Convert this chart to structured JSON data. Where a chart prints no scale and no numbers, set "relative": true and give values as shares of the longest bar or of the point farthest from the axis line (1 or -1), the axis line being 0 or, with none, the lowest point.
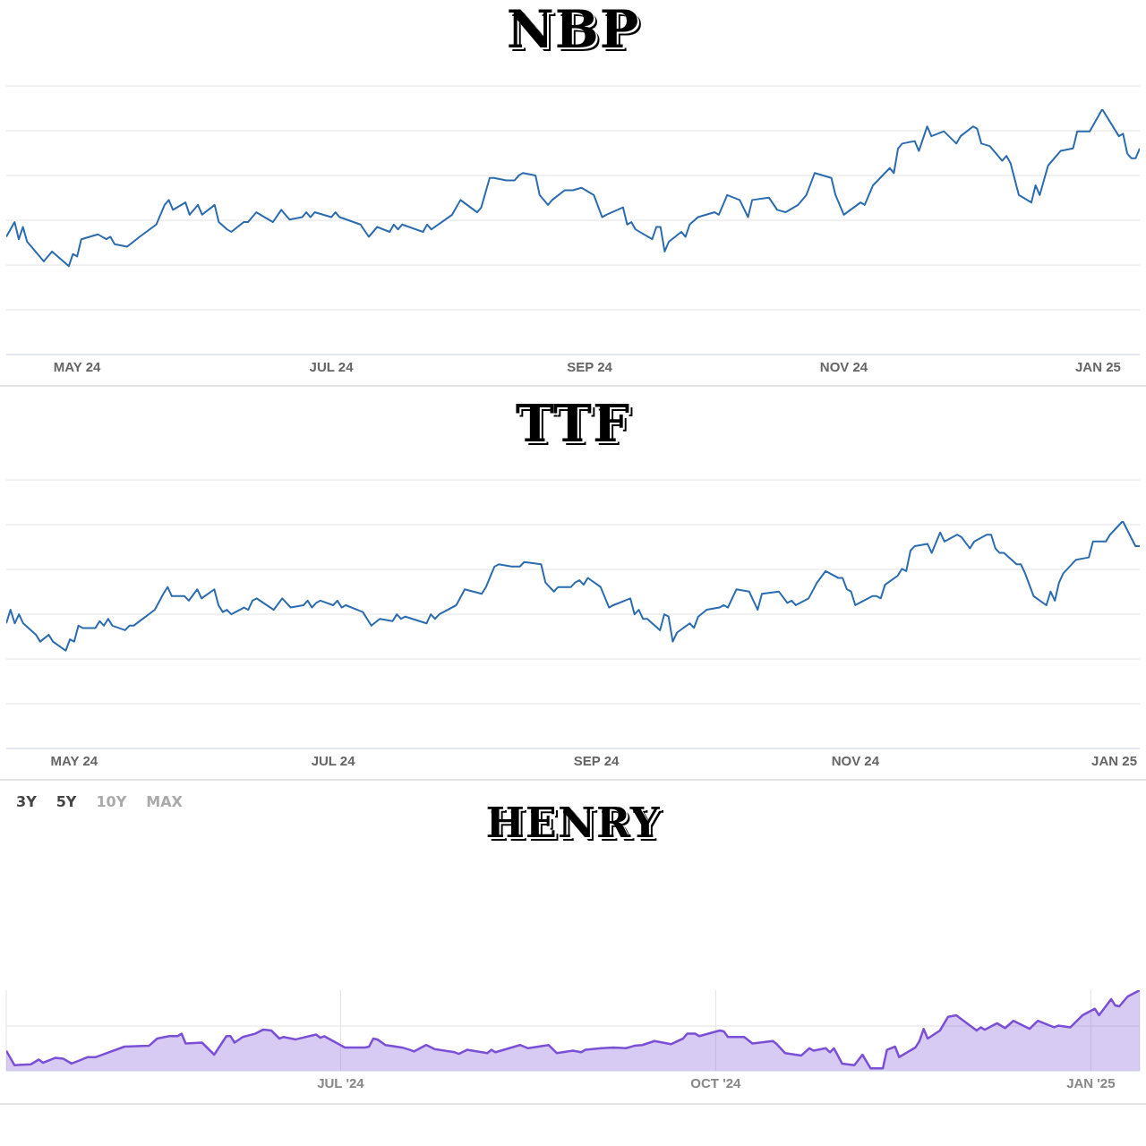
{
  "chart_data": [
    {
      "type": "line",
      "title": "NBP",
      "relative": true,
      "grid": "y",
      "marker": "none",
      "line_style": "solid",
      "xlim": [
        "2024-04-14",
        "2025-01-11"
      ],
      "xticks": [
        {
          "value": "2024-05-01",
          "label": "MAY 24"
        },
        {
          "value": "2024-07-01",
          "label": "JUL 24"
        },
        {
          "value": "2024-09-01",
          "label": "SEP 24"
        },
        {
          "value": "2024-11-01",
          "label": "NOV 24"
        },
        {
          "value": "2025-01-01",
          "label": "JAN 25"
        }
      ],
      "series": [
        {
          "color": "#2b6cb0",
          "x": [
            "2024-04-14",
            "2024-04-16",
            "2024-04-17",
            "2024-04-18",
            "2024-04-19",
            "2024-04-23",
            "2024-04-25",
            "2024-04-29",
            "2024-04-30",
            "2024-05-01",
            "2024-05-02",
            "2024-05-06",
            "2024-05-08",
            "2024-05-09",
            "2024-05-10",
            "2024-05-13",
            "2024-05-16",
            "2024-05-20",
            "2024-05-22",
            "2024-05-23",
            "2024-05-24",
            "2024-05-27",
            "2024-05-28",
            "2024-05-30",
            "2024-05-31",
            "2024-06-03",
            "2024-06-04",
            "2024-06-06",
            "2024-06-07",
            "2024-06-10",
            "2024-06-11",
            "2024-06-13",
            "2024-06-17",
            "2024-06-19",
            "2024-06-21",
            "2024-06-24",
            "2024-06-25",
            "2024-06-26",
            "2024-06-27",
            "2024-07-01",
            "2024-07-02",
            "2024-07-03",
            "2024-07-08",
            "2024-07-10",
            "2024-07-12",
            "2024-07-15",
            "2024-07-16",
            "2024-07-17",
            "2024-07-18",
            "2024-07-23",
            "2024-07-24",
            "2024-07-25",
            "2024-07-30",
            "2024-08-01",
            "2024-08-05",
            "2024-08-06",
            "2024-08-08",
            "2024-08-09",
            "2024-08-12",
            "2024-08-14",
            "2024-08-15",
            "2024-08-16",
            "2024-08-19",
            "2024-08-20",
            "2024-08-22",
            "2024-08-23",
            "2024-08-26",
            "2024-08-28",
            "2024-08-30",
            "2024-09-02",
            "2024-09-04",
            "2024-09-05",
            "2024-09-09",
            "2024-09-10",
            "2024-09-11",
            "2024-09-12",
            "2024-09-16",
            "2024-09-17",
            "2024-09-18",
            "2024-09-19",
            "2024-09-20",
            "2024-09-23",
            "2024-09-24",
            "2024-09-25",
            "2024-09-27",
            "2024-10-01",
            "2024-10-02",
            "2024-10-04",
            "2024-10-07",
            "2024-10-09",
            "2024-10-10",
            "2024-10-14",
            "2024-10-16",
            "2024-10-18",
            "2024-10-21",
            "2024-10-23",
            "2024-10-25",
            "2024-10-29",
            "2024-10-30",
            "2024-11-01",
            "2024-11-05",
            "2024-11-06",
            "2024-11-08",
            "2024-11-12",
            "2024-11-13",
            "2024-11-14",
            "2024-11-15",
            "2024-11-18",
            "2024-11-19",
            "2024-11-21",
            "2024-11-22",
            "2024-11-25",
            "2024-11-28",
            "2024-11-29",
            "2024-12-02",
            "2024-12-03",
            "2024-12-04",
            "2024-12-06",
            "2024-12-09",
            "2024-12-10",
            "2024-12-11",
            "2024-12-13",
            "2024-12-16",
            "2024-12-17",
            "2024-12-18",
            "2024-12-20",
            "2024-12-23",
            "2024-12-26",
            "2024-12-27",
            "2024-12-30",
            "2024-12-31",
            "2025-01-02",
            "2025-01-06",
            "2025-01-07",
            "2025-01-08",
            "2025-01-09",
            "2025-01-10",
            "2025-01-11"
          ],
          "values": [
            0.48,
            0.54,
            0.47,
            0.52,
            0.46,
            0.38,
            0.42,
            0.36,
            0.41,
            0.4,
            0.47,
            0.49,
            0.47,
            0.48,
            0.45,
            0.44,
            0.48,
            0.53,
            0.61,
            0.63,
            0.59,
            0.62,
            0.57,
            0.61,
            0.57,
            0.61,
            0.54,
            0.51,
            0.5,
            0.54,
            0.54,
            0.58,
            0.54,
            0.59,
            0.55,
            0.56,
            0.58,
            0.56,
            0.58,
            0.56,
            0.58,
            0.56,
            0.53,
            0.48,
            0.52,
            0.5,
            0.53,
            0.51,
            0.53,
            0.5,
            0.53,
            0.51,
            0.57,
            0.63,
            0.58,
            0.6,
            0.72,
            0.72,
            0.71,
            0.71,
            0.73,
            0.74,
            0.73,
            0.65,
            0.61,
            0.63,
            0.67,
            0.67,
            0.68,
            0.65,
            0.56,
            0.57,
            0.6,
            0.53,
            0.54,
            0.51,
            0.47,
            0.52,
            0.52,
            0.42,
            0.46,
            0.5,
            0.48,
            0.53,
            0.56,
            0.58,
            0.57,
            0.65,
            0.63,
            0.56,
            0.63,
            0.64,
            0.59,
            0.58,
            0.61,
            0.65,
            0.74,
            0.72,
            0.65,
            0.57,
            0.62,
            0.61,
            0.69,
            0.76,
            0.74,
            0.84,
            0.86,
            0.87,
            0.83,
            0.93,
            0.89,
            0.91,
            0.86,
            0.89,
            0.93,
            0.92,
            0.86,
            0.85,
            0.79,
            0.81,
            0.78,
            0.65,
            0.62,
            0.69,
            0.65,
            0.77,
            0.83,
            0.84,
            0.91,
            0.91,
            0.94,
            1.0,
            0.89,
            0.9,
            0.82,
            0.8,
            0.8,
            0.84
          ]
        }
      ]
    },
    {
      "type": "line",
      "title": "TTF",
      "relative": true,
      "grid": "y",
      "marker": "none",
      "line_style": "solid",
      "xlim": [
        "2024-04-15",
        "2025-01-07"
      ],
      "xticks": [
        {
          "value": "2024-05-01",
          "label": "MAY 24"
        },
        {
          "value": "2024-07-01",
          "label": "JUL 24"
        },
        {
          "value": "2024-09-01",
          "label": "SEP 24"
        },
        {
          "value": "2024-11-01",
          "label": "NOV 24"
        },
        {
          "value": "2025-01-01",
          "label": "JAN 25"
        }
      ],
      "series": [
        {
          "color": "#2b6cb0",
          "x": [
            "2024-04-15",
            "2024-04-16",
            "2024-04-17",
            "2024-04-18",
            "2024-04-19",
            "2024-04-22",
            "2024-04-23",
            "2024-04-25",
            "2024-04-26",
            "2024-04-29",
            "2024-04-30",
            "2024-05-01",
            "2024-05-02",
            "2024-05-03",
            "2024-05-06",
            "2024-05-07",
            "2024-05-08",
            "2024-05-09",
            "2024-05-10",
            "2024-05-13",
            "2024-05-14",
            "2024-05-15",
            "2024-05-20",
            "2024-05-22",
            "2024-05-23",
            "2024-05-24",
            "2024-05-27",
            "2024-05-28",
            "2024-05-30",
            "2024-05-31",
            "2024-06-03",
            "2024-06-04",
            "2024-06-05",
            "2024-06-06",
            "2024-06-07",
            "2024-06-10",
            "2024-06-11",
            "2024-06-12",
            "2024-06-13",
            "2024-06-17",
            "2024-06-19",
            "2024-06-21",
            "2024-06-24",
            "2024-06-25",
            "2024-06-26",
            "2024-06-27",
            "2024-06-28",
            "2024-07-01",
            "2024-07-02",
            "2024-07-03",
            "2024-07-04",
            "2024-07-08",
            "2024-07-09",
            "2024-07-10",
            "2024-07-12",
            "2024-07-15",
            "2024-07-16",
            "2024-07-17",
            "2024-07-18",
            "2024-07-23",
            "2024-07-24",
            "2024-07-25",
            "2024-07-26",
            "2024-07-30",
            "2024-08-01",
            "2024-08-05",
            "2024-08-06",
            "2024-08-08",
            "2024-08-09",
            "2024-08-12",
            "2024-08-14",
            "2024-08-15",
            "2024-08-19",
            "2024-08-20",
            "2024-08-22",
            "2024-08-23",
            "2024-08-26",
            "2024-08-27",
            "2024-08-28",
            "2024-08-29",
            "2024-08-30",
            "2024-09-02",
            "2024-09-04",
            "2024-09-05",
            "2024-09-09",
            "2024-09-10",
            "2024-09-11",
            "2024-09-12",
            "2024-09-13",
            "2024-09-16",
            "2024-09-17",
            "2024-09-18",
            "2024-09-19",
            "2024-09-20",
            "2024-09-23",
            "2024-09-24",
            "2024-09-25",
            "2024-09-27",
            "2024-09-30",
            "2024-10-01",
            "2024-10-02",
            "2024-10-04",
            "2024-10-07",
            "2024-10-09",
            "2024-10-10",
            "2024-10-14",
            "2024-10-16",
            "2024-10-17",
            "2024-10-18",
            "2024-10-21",
            "2024-10-23",
            "2024-10-25",
            "2024-10-28",
            "2024-10-29",
            "2024-10-30",
            "2024-10-31",
            "2024-11-01",
            "2024-11-05",
            "2024-11-06",
            "2024-11-07",
            "2024-11-08",
            "2024-11-11",
            "2024-11-12",
            "2024-11-13",
            "2024-11-14",
            "2024-11-15",
            "2024-11-18",
            "2024-11-19",
            "2024-11-21",
            "2024-11-22",
            "2024-11-25",
            "2024-11-26",
            "2024-11-28",
            "2024-11-29",
            "2024-12-02",
            "2024-12-03",
            "2024-12-04",
            "2024-12-05",
            "2024-12-06",
            "2024-12-09",
            "2024-12-10",
            "2024-12-11",
            "2024-12-13",
            "2024-12-16",
            "2024-12-17",
            "2024-12-18",
            "2024-12-19",
            "2024-12-20",
            "2024-12-23",
            "2024-12-26",
            "2024-12-27",
            "2024-12-30",
            "2024-12-31",
            "2025-01-03",
            "2025-01-06",
            "2025-01-07"
          ],
          "values": [
            0.55,
            0.61,
            0.55,
            0.59,
            0.55,
            0.5,
            0.47,
            0.5,
            0.47,
            0.43,
            0.48,
            0.47,
            0.54,
            0.53,
            0.53,
            0.56,
            0.54,
            0.57,
            0.54,
            0.52,
            0.54,
            0.54,
            0.61,
            0.68,
            0.71,
            0.67,
            0.67,
            0.65,
            0.7,
            0.66,
            0.7,
            0.63,
            0.6,
            0.61,
            0.59,
            0.62,
            0.61,
            0.65,
            0.66,
            0.61,
            0.66,
            0.62,
            0.63,
            0.65,
            0.62,
            0.64,
            0.65,
            0.63,
            0.65,
            0.62,
            0.63,
            0.6,
            0.57,
            0.54,
            0.57,
            0.56,
            0.59,
            0.57,
            0.58,
            0.55,
            0.59,
            0.57,
            0.59,
            0.63,
            0.7,
            0.68,
            0.71,
            0.8,
            0.81,
            0.8,
            0.8,
            0.82,
            0.81,
            0.73,
            0.69,
            0.71,
            0.71,
            0.73,
            0.74,
            0.72,
            0.75,
            0.71,
            0.62,
            0.63,
            0.66,
            0.59,
            0.61,
            0.57,
            0.57,
            0.52,
            0.59,
            0.58,
            0.47,
            0.51,
            0.55,
            0.53,
            0.58,
            0.61,
            0.62,
            0.63,
            0.62,
            0.7,
            0.69,
            0.61,
            0.68,
            0.69,
            0.64,
            0.65,
            0.63,
            0.66,
            0.73,
            0.78,
            0.75,
            0.75,
            0.7,
            0.69,
            0.63,
            0.67,
            0.67,
            0.66,
            0.72,
            0.76,
            0.79,
            0.78,
            0.87,
            0.89,
            0.9,
            0.86,
            0.95,
            0.91,
            0.94,
            0.93,
            0.88,
            0.91,
            0.94,
            0.94,
            0.88,
            0.86,
            0.86,
            0.81,
            0.81,
            0.77,
            0.67,
            0.63,
            0.69,
            0.65,
            0.73,
            0.77,
            0.83,
            0.84,
            0.91,
            0.91,
            0.94,
            1.0,
            0.89,
            0.89
          ]
        }
      ]
    },
    {
      "type": "area",
      "title": "HENRY",
      "relative": true,
      "grid": true,
      "marker": "none",
      "line_style": "solid",
      "xlim": [
        "2024-04-10",
        "2025-01-13"
      ],
      "xticks": [
        {
          "value": "2024-07-01",
          "label": "JUL '24"
        },
        {
          "value": "2024-10-01",
          "label": "OCT '24"
        },
        {
          "value": "2025-01-01",
          "label": "JAN '25"
        }
      ],
      "annotations": [
        "3Y",
        "5Y",
        "10Y",
        "MAX"
      ],
      "series": [
        {
          "color": "#7b4fd6",
          "x": [
            "2024-04-10",
            "2024-04-12",
            "2024-04-16",
            "2024-04-18",
            "2024-04-19",
            "2024-04-22",
            "2024-04-24",
            "2024-04-26",
            "2024-04-28",
            "2024-04-30",
            "2024-05-02",
            "2024-05-09",
            "2024-05-15",
            "2024-05-17",
            "2024-05-20",
            "2024-05-22",
            "2024-05-23",
            "2024-05-24",
            "2024-05-28",
            "2024-05-31",
            "2024-06-03",
            "2024-06-04",
            "2024-06-05",
            "2024-06-07",
            "2024-06-10",
            "2024-06-12",
            "2024-06-14",
            "2024-06-16",
            "2024-06-17",
            "2024-06-20",
            "2024-06-25",
            "2024-06-26",
            "2024-06-27",
            "2024-07-02",
            "2024-07-07",
            "2024-07-08",
            "2024-07-09",
            "2024-07-10",
            "2024-07-12",
            "2024-07-16",
            "2024-07-18",
            "2024-07-19",
            "2024-07-22",
            "2024-07-24",
            "2024-07-29",
            "2024-07-30",
            "2024-08-01",
            "2024-08-06",
            "2024-08-07",
            "2024-08-08",
            "2024-08-14",
            "2024-08-16",
            "2024-08-21",
            "2024-08-23",
            "2024-08-27",
            "2024-08-29",
            "2024-08-30",
            "2024-09-03",
            "2024-09-06",
            "2024-09-09",
            "2024-09-11",
            "2024-09-13",
            "2024-09-16",
            "2024-09-20",
            "2024-09-23",
            "2024-09-24",
            "2024-09-26",
            "2024-09-27",
            "2024-10-02",
            "2024-10-03",
            "2024-10-04",
            "2024-10-08",
            "2024-10-10",
            "2024-10-15",
            "2024-10-16",
            "2024-10-18",
            "2024-10-22",
            "2024-10-24",
            "2024-10-25",
            "2024-10-28",
            "2024-10-29",
            "2024-10-30",
            "2024-11-01",
            "2024-11-04",
            "2024-11-06",
            "2024-11-08",
            "2024-11-11",
            "2024-11-12",
            "2024-11-14",
            "2024-11-15",
            "2024-11-19",
            "2024-11-20",
            "2024-11-21",
            "2024-11-22",
            "2024-11-25",
            "2024-11-27",
            "2024-11-29",
            "2024-12-04",
            "2024-12-05",
            "2024-12-06",
            "2024-12-09",
            "2024-12-11",
            "2024-12-13",
            "2024-12-17",
            "2024-12-19",
            "2024-12-23",
            "2024-12-24",
            "2024-12-27",
            "2024-12-30",
            "2025-01-02",
            "2025-01-03",
            "2025-01-06",
            "2025-01-07",
            "2025-01-08",
            "2025-01-10",
            "2025-01-13"
          ],
          "values": [
            0.25,
            0.07,
            0.08,
            0.14,
            0.1,
            0.16,
            0.15,
            0.09,
            0.13,
            0.17,
            0.17,
            0.3,
            0.31,
            0.4,
            0.43,
            0.43,
            0.46,
            0.34,
            0.35,
            0.2,
            0.43,
            0.43,
            0.35,
            0.42,
            0.46,
            0.51,
            0.5,
            0.4,
            0.42,
            0.39,
            0.45,
            0.41,
            0.43,
            0.29,
            0.29,
            0.3,
            0.4,
            0.39,
            0.32,
            0.29,
            0.26,
            0.24,
            0.32,
            0.27,
            0.23,
            0.21,
            0.26,
            0.22,
            0.26,
            0.23,
            0.32,
            0.28,
            0.32,
            0.22,
            0.25,
            0.23,
            0.26,
            0.28,
            0.29,
            0.28,
            0.31,
            0.32,
            0.37,
            0.33,
            0.4,
            0.46,
            0.46,
            0.43,
            0.5,
            0.49,
            0.42,
            0.42,
            0.34,
            0.37,
            0.33,
            0.22,
            0.19,
            0.28,
            0.25,
            0.28,
            0.23,
            0.28,
            0.09,
            0.07,
            0.2,
            0.03,
            0.03,
            0.26,
            0.3,
            0.17,
            0.29,
            0.37,
            0.52,
            0.4,
            0.5,
            0.67,
            0.69,
            0.5,
            0.54,
            0.51,
            0.59,
            0.53,
            0.62,
            0.52,
            0.62,
            0.54,
            0.56,
            0.54,
            0.69,
            0.77,
            0.69,
            0.89,
            0.81,
            0.8,
            0.92,
            1.0
          ]
        }
      ]
    }
  ]
}
